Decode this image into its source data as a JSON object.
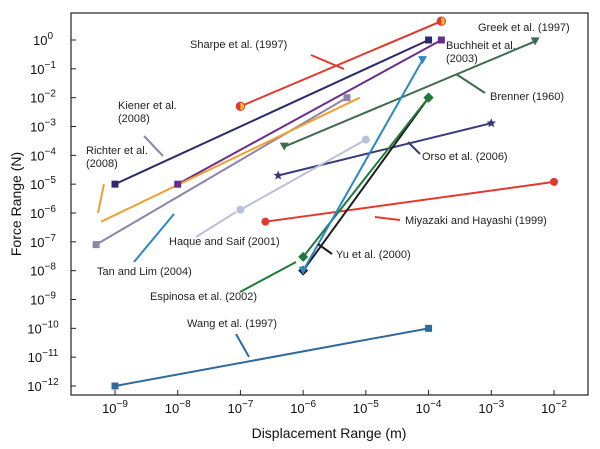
{
  "chart_data": {
    "type": "line",
    "xlabel": "Displacement Range (m)",
    "ylabel": "Force Range (N)",
    "x_scale": "log",
    "y_scale": "log",
    "xlim": [
      3e-10,
      0.04
    ],
    "ylim": [
      5e-13,
      6.0
    ],
    "x_ticks": [
      {
        "value": 1e-09,
        "base": "10",
        "exp": "−9"
      },
      {
        "value": 1e-08,
        "base": "10",
        "exp": "−8"
      },
      {
        "value": 1e-07,
        "base": "10",
        "exp": "−7"
      },
      {
        "value": 1e-06,
        "base": "10",
        "exp": "−6"
      },
      {
        "value": 1e-05,
        "base": "10",
        "exp": "−5"
      },
      {
        "value": 0.0001,
        "base": "10",
        "exp": "−4"
      },
      {
        "value": 0.001,
        "base": "10",
        "exp": "−3"
      },
      {
        "value": 0.01,
        "base": "10",
        "exp": "−2"
      }
    ],
    "y_ticks": [
      {
        "value": 1.0,
        "base": "10",
        "exp": "0"
      },
      {
        "value": 0.1,
        "base": "10",
        "exp": "−1"
      },
      {
        "value": 0.01,
        "base": "10",
        "exp": "−2"
      },
      {
        "value": 0.001,
        "base": "10",
        "exp": "−3"
      },
      {
        "value": 0.0001,
        "base": "10",
        "exp": "−4"
      },
      {
        "value": 1e-05,
        "base": "10",
        "exp": "−5"
      },
      {
        "value": 1e-06,
        "base": "10",
        "exp": "−6"
      },
      {
        "value": 1e-07,
        "base": "10",
        "exp": "−7"
      },
      {
        "value": 1e-08,
        "base": "10",
        "exp": "−8"
      },
      {
        "value": 1e-09,
        "base": "10",
        "exp": "−9"
      },
      {
        "value": 1e-10,
        "base": "10",
        "exp": "−10"
      },
      {
        "value": 1e-11,
        "base": "10",
        "exp": "−11"
      },
      {
        "value": 1e-12,
        "base": "10",
        "exp": "−12"
      }
    ],
    "series": [
      {
        "name": "Sharpe et al. (1997)",
        "color": "#e03a2f",
        "marker": "half-circle",
        "points": [
          [
            1e-07,
            0.005
          ],
          [
            0.00016,
            4.5
          ]
        ]
      },
      {
        "name": "Greek et al. (1997)",
        "color": "#6a2c8e",
        "marker": "square",
        "points": [
          [
            1e-08,
            1e-05
          ],
          [
            0.00016,
            1.0
          ]
        ]
      },
      {
        "name": "Buchheit et al. (2003)",
        "color": "#2b2b6b",
        "marker": "square",
        "points": [
          [
            1e-09,
            1e-05
          ],
          [
            0.0001,
            1.0
          ]
        ]
      },
      {
        "name": "Brenner (1960)",
        "color": "#3f6b4f",
        "marker": "triangle-down",
        "points": [
          [
            5e-07,
            0.0002
          ],
          [
            0.005,
            0.9
          ]
        ]
      },
      {
        "name": "Kiener et al. (2008)",
        "color": "#8c86a8",
        "marker": "square",
        "points": [
          [
            5e-10,
            8e-08
          ],
          [
            5e-06,
            0.01
          ]
        ]
      },
      {
        "name": "Richter et al. (2008)",
        "color": "#f0a030",
        "marker": "none",
        "points": [
          [
            6e-10,
            5e-07
          ],
          [
            8e-06,
            0.01
          ]
        ]
      },
      {
        "name": "Orso et al. (2006)",
        "color": "#3a3a7a",
        "marker": "star",
        "points": [
          [
            4e-07,
            2e-05
          ],
          [
            0.001,
            0.0013
          ]
        ]
      },
      {
        "name": "Miyazaki and Hayashi (1999)",
        "color": "#e03a2f",
        "marker": "circle",
        "points": [
          [
            2.5e-07,
            5e-07
          ],
          [
            0.01,
            1.2e-05
          ]
        ]
      },
      {
        "name": "Haque and Saif (2001)",
        "color": "#b9c0d8",
        "marker": "circle",
        "points": [
          [
            1e-07,
            1.3e-06
          ],
          [
            1e-05,
            0.00035
          ]
        ]
      },
      {
        "name": "Yu et al. (2000)",
        "color": "#1d1d1d",
        "marker": "diamond",
        "points": [
          [
            1e-06,
            1e-08
          ],
          [
            0.0001,
            0.01
          ]
        ]
      },
      {
        "name": "Espinosa et al. (2002)",
        "color": "#1f7a3a",
        "marker": "diamond",
        "points": [
          [
            1e-06,
            3e-08
          ],
          [
            0.0001,
            0.01
          ]
        ]
      },
      {
        "name": "Tan and Lim (2004)",
        "color": "#2b88c8",
        "marker": "triangle-down",
        "points": [
          [
            1e-06,
            1e-08
          ],
          [
            8e-05,
            0.2
          ]
        ]
      },
      {
        "name": "Wang et al. (1997)",
        "color": "#2f6a9a",
        "marker": "square",
        "points": [
          [
            1e-09,
            1e-12
          ],
          [
            0.0001,
            1e-10
          ]
        ]
      }
    ],
    "annotations": [
      {
        "text": "Sharpe et al. (1997)",
        "series": 0,
        "lines": [
          "Sharpe et al. (1997)"
        ]
      },
      {
        "text": "Greek et al. (1997)",
        "series": 1,
        "lines": [
          "Greek et al. (1997)"
        ]
      },
      {
        "text": "Buchheit et al. (2003)",
        "series": 2,
        "lines": [
          "Buchheit et al.",
          "(2003)"
        ]
      },
      {
        "text": "Brenner (1960)",
        "series": 3,
        "lines": [
          "Brenner (1960)"
        ]
      },
      {
        "text": "Kiener et al. (2008)",
        "series": 4,
        "lines": [
          "Kiener et al.",
          "(2008)"
        ]
      },
      {
        "text": "Richter et al. (2008)",
        "series": 5,
        "lines": [
          "Richter et al.",
          "(2008)"
        ]
      },
      {
        "text": "Orso et al. (2006)",
        "series": 6,
        "lines": [
          "Orso et al. (2006)"
        ]
      },
      {
        "text": "Miyazaki and Hayashi (1999)",
        "series": 7,
        "lines": [
          "Miyazaki and Hayashi (1999)"
        ]
      },
      {
        "text": "Haque and Saif (2001)",
        "series": 8,
        "lines": [
          "Haque and Saif (2001)"
        ]
      },
      {
        "text": "Yu et al. (2000)",
        "series": 9,
        "lines": [
          "Yu et al. (2000)"
        ]
      },
      {
        "text": "Espinosa et al. (2002)",
        "series": 10,
        "lines": [
          "Espinosa et al. (2002)"
        ]
      },
      {
        "text": "Tan and Lim (2004)",
        "series": 11,
        "lines": [
          "Tan and Lim (2004)"
        ]
      },
      {
        "text": "Wang et al. (1997)",
        "series": 12,
        "lines": [
          "Wang et al. (1997)"
        ]
      }
    ]
  }
}
